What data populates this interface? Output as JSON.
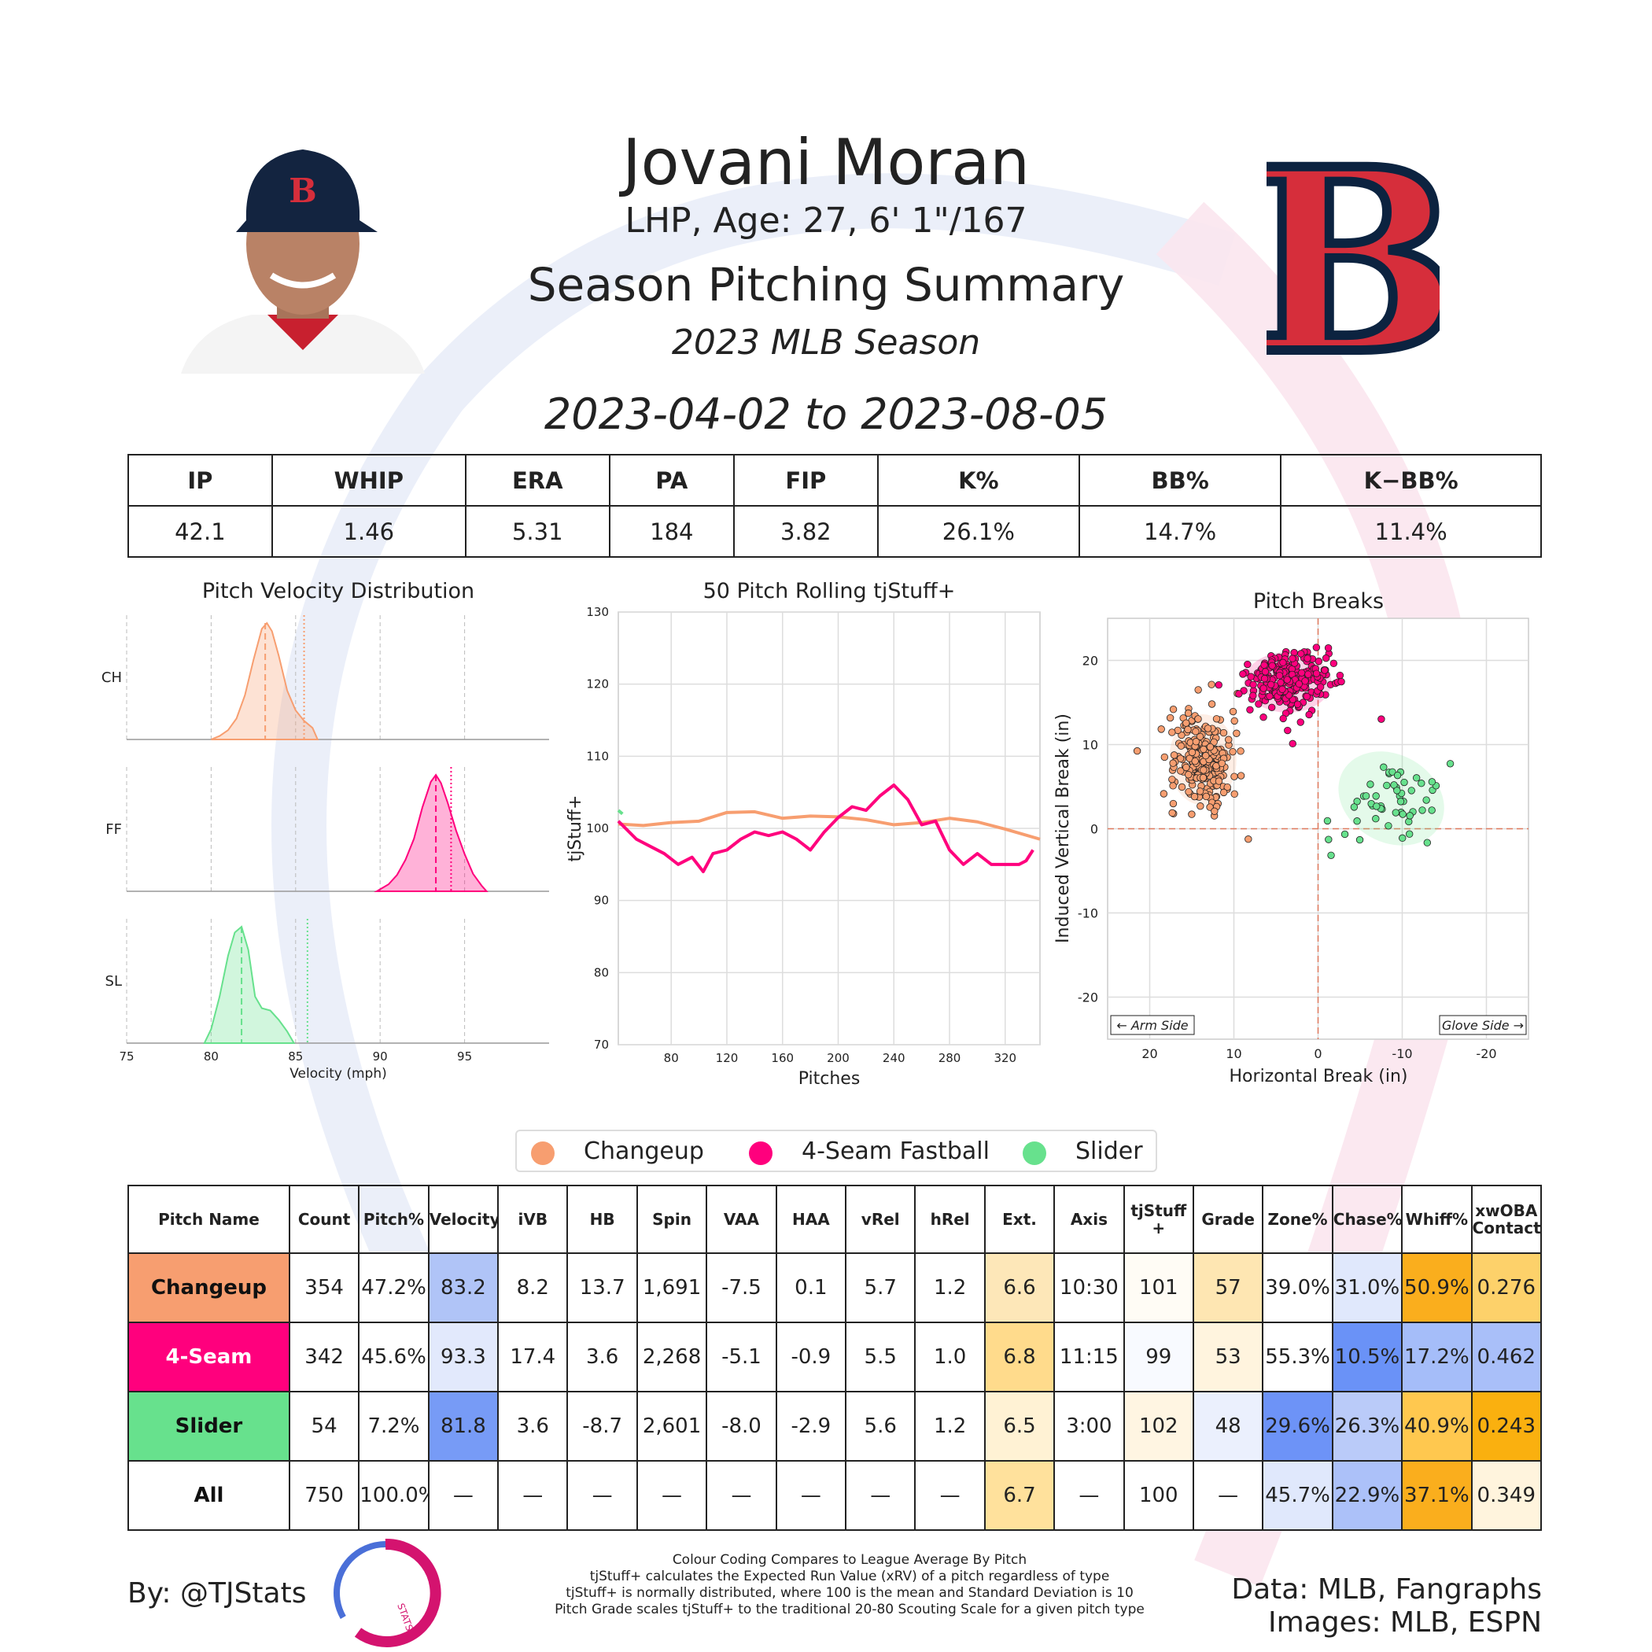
{
  "colors": {
    "changeup": "#F79E70",
    "fastball": "#FF007D",
    "slider": "#67E18D",
    "redsox_red": "#D62E3B",
    "redsox_navy": "#0C2340"
  },
  "header": {
    "name": "Jovani Moran",
    "sub": "LHP, Age: 27, 6' 1\"/167",
    "title": "Season Pitching Summary",
    "season": "2023 MLB Season",
    "dates": "2023-04-02 to 2023-08-05",
    "team_logo_icon": "red-sox-b-logo",
    "player_photo_icon": "player-headshot"
  },
  "stats": {
    "headers": [
      "IP",
      "WHIP",
      "ERA",
      "PA",
      "FIP",
      "K%",
      "BB%",
      "K−BB%"
    ],
    "values": [
      "42.1",
      "1.46",
      "5.31",
      "184",
      "3.82",
      "26.1%",
      "14.7%",
      "11.4%"
    ]
  },
  "legend": [
    "Changeup",
    "4-Seam Fastball",
    "Slider"
  ],
  "chart_data": [
    {
      "type": "area",
      "title": "Pitch Velocity Distribution",
      "xlabel": "Velocity (mph)",
      "xticks": [
        75,
        80,
        85,
        90,
        95
      ],
      "xlim": [
        75,
        100
      ],
      "series": [
        {
          "name": "CH",
          "mean": 83.2,
          "league_mean": 85.5,
          "x": [
            80,
            80.5,
            81,
            81.5,
            82,
            82.5,
            83,
            83.3,
            83.6,
            84,
            84.5,
            85,
            85.5,
            86,
            86.3
          ],
          "density": [
            0,
            0.03,
            0.08,
            0.18,
            0.38,
            0.68,
            0.95,
            1.0,
            0.93,
            0.72,
            0.42,
            0.25,
            0.16,
            0.1,
            0
          ]
        },
        {
          "name": "FF",
          "mean": 93.3,
          "league_mean": 94.2,
          "x": [
            89.8,
            90.5,
            91,
            91.5,
            92,
            92.5,
            93,
            93.3,
            93.6,
            94,
            94.5,
            95,
            95.5,
            96,
            96.3
          ],
          "density": [
            0,
            0.06,
            0.14,
            0.27,
            0.45,
            0.72,
            0.94,
            1.0,
            0.93,
            0.76,
            0.52,
            0.32,
            0.15,
            0.05,
            0
          ]
        },
        {
          "name": "SL",
          "mean": 81.8,
          "league_mean": 85.7,
          "x": [
            79.6,
            80,
            80.5,
            81,
            81.4,
            81.8,
            82.2,
            82.6,
            83,
            83.5,
            84,
            84.5,
            84.9
          ],
          "density": [
            0,
            0.12,
            0.4,
            0.75,
            0.95,
            1.0,
            0.8,
            0.4,
            0.3,
            0.28,
            0.2,
            0.1,
            0
          ]
        }
      ]
    },
    {
      "type": "line",
      "title": "50 Pitch Rolling tjStuff+",
      "xlabel": "Pitches",
      "ylabel": "tjStuff+",
      "xticks": [
        80,
        120,
        160,
        200,
        240,
        280,
        320
      ],
      "yticks": [
        70,
        80,
        90,
        100,
        110,
        120,
        130
      ],
      "xlim": [
        42,
        345
      ],
      "ylim": [
        70,
        130
      ],
      "series": [
        {
          "name": "Changeup",
          "x": [
            42,
            60,
            80,
            100,
            120,
            140,
            160,
            180,
            200,
            220,
            240,
            260,
            280,
            300,
            320,
            345
          ],
          "values": [
            100.6,
            100.4,
            100.8,
            101.0,
            102.2,
            102.3,
            101.4,
            101.7,
            101.6,
            101.2,
            100.5,
            100.8,
            101.4,
            100.9,
            99.9,
            98.5
          ]
        },
        {
          "name": "4-Seam Fastball",
          "x": [
            42,
            55,
            65,
            75,
            85,
            95,
            103,
            110,
            120,
            130,
            140,
            150,
            160,
            170,
            180,
            190,
            200,
            210,
            220,
            230,
            240,
            250,
            260,
            270,
            280,
            290,
            300,
            310,
            320,
            330,
            335,
            340
          ],
          "values": [
            101.0,
            98.5,
            97.5,
            96.5,
            95.0,
            96.0,
            94.0,
            96.5,
            97.0,
            98.5,
            99.5,
            99.0,
            99.5,
            98.5,
            97.0,
            99.5,
            101.5,
            103.0,
            102.5,
            104.5,
            106.0,
            104.0,
            100.5,
            101.0,
            97.0,
            95.0,
            96.5,
            95.0,
            95.0,
            95.0,
            95.5,
            97.0
          ]
        },
        {
          "name": "Slider",
          "x": [
            42,
            45
          ],
          "values": [
            102.5,
            102.0
          ]
        }
      ]
    },
    {
      "type": "scatter",
      "title": "Pitch Breaks",
      "xlabel": "Horizontal Break (in)",
      "ylabel": "Induced Vertical Break (in)",
      "xticks": [
        20,
        10,
        0,
        -10,
        -20
      ],
      "yticks": [
        -20,
        -10,
        0,
        10,
        20
      ],
      "xlim": [
        25,
        -25
      ],
      "ylim": [
        -25,
        25
      ],
      "annotations": [
        "← Arm Side",
        "Glove Side →"
      ],
      "series": [
        {
          "name": "Changeup",
          "n": 354,
          "hb_mean": 13.7,
          "ivb_mean": 8.2,
          "hb_sd": 2.0,
          "ivb_sd": 2.7
        },
        {
          "name": "4-Seam Fastball",
          "n": 342,
          "hb_mean": 3.6,
          "ivb_mean": 17.4,
          "hb_sd": 2.6,
          "ivb_sd": 1.8
        },
        {
          "name": "Slider",
          "n": 54,
          "hb_mean": -8.7,
          "ivb_mean": 3.6,
          "hb_sd": 3.3,
          "ivb_sd": 2.6
        }
      ]
    }
  ],
  "pitch_table": {
    "headers": [
      "Pitch Name",
      "Count",
      "Pitch%",
      "Velocity",
      "iVB",
      "HB",
      "Spin",
      "VAA",
      "HAA",
      "vRel",
      "hRel",
      "Ext.",
      "Axis",
      "tjStuff +",
      "Grade",
      "Zone%",
      "Chase%",
      "Whiff%",
      "xwOBA Contact"
    ],
    "rows": [
      {
        "cells": [
          "Changeup",
          "354",
          "47.2%",
          "83.2",
          "8.2",
          "13.7",
          "1,691",
          "-7.5",
          "0.1",
          "5.7",
          "1.2",
          "6.6",
          "10:30",
          "101",
          "57",
          "39.0%",
          "31.0%",
          "50.9%",
          "0.276"
        ],
        "bg": [
          "#F79E70",
          "#fff",
          "#fff",
          "#B0C4F7",
          "#fff",
          "#fff",
          "#fff",
          "#fff",
          "#fff",
          "#fff",
          "#fff",
          "#FDE7B8",
          "#fff",
          "#FFFCF5",
          "#FEE6B2",
          "#fff",
          "#E0E8FC",
          "#FAAE1D",
          "#FDD16A"
        ],
        "fg": [
          "#111"
        ]
      },
      {
        "cells": [
          "4-Seam",
          "342",
          "45.6%",
          "93.3",
          "17.4",
          "3.6",
          "2,268",
          "-5.1",
          "-0.9",
          "5.5",
          "1.0",
          "6.8",
          "11:15",
          "99",
          "53",
          "55.3%",
          "10.5%",
          "17.2%",
          "0.462"
        ],
        "bg": [
          "#FF007D",
          "#fff",
          "#fff",
          "#E2E9FC",
          "#fff",
          "#fff",
          "#fff",
          "#fff",
          "#fff",
          "#fff",
          "#fff",
          "#FFDB8C",
          "#fff",
          "#F8FAFF",
          "#FFF4DE",
          "#fff",
          "#6A92F7",
          "#A5BDF9",
          "#A9BFF9"
        ],
        "fg": [
          "#fff"
        ]
      },
      {
        "cells": [
          "Slider",
          "54",
          "7.2%",
          "81.8",
          "3.6",
          "-8.7",
          "2,601",
          "-8.0",
          "-2.9",
          "5.6",
          "1.2",
          "6.5",
          "3:00",
          "102",
          "48",
          "29.6%",
          "26.3%",
          "40.9%",
          "0.243"
        ],
        "bg": [
          "#67E18D",
          "#fff",
          "#fff",
          "#779BF6",
          "#fff",
          "#fff",
          "#fff",
          "#fff",
          "#fff",
          "#fff",
          "#fff",
          "#FFF2D4",
          "#fff",
          "#FFF5E2",
          "#EBF0FD",
          "#6D93F7",
          "#BACBF9",
          "#FFC84F",
          "#FAB00F"
        ],
        "fg": [
          "#111"
        ]
      },
      {
        "cells": [
          "All",
          "750",
          "100.0%",
          "—",
          "—",
          "—",
          "—",
          "—",
          "—",
          "—",
          "—",
          "6.7",
          "—",
          "100",
          "—",
          "45.7%",
          "22.9%",
          "37.1%",
          "0.349"
        ],
        "bg": [
          "#fff",
          "#fff",
          "#fff",
          "#fff",
          "#fff",
          "#fff",
          "#fff",
          "#fff",
          "#fff",
          "#fff",
          "#fff",
          "#FFE19C",
          "#fff",
          "#fff",
          "#fff",
          "#E0E8FC",
          "#ACC1F9",
          "#FAAE1D",
          "#FFF4DD"
        ],
        "fg": [
          "#111"
        ]
      }
    ]
  },
  "footer": {
    "by": "By: @TJStats",
    "notes": [
      "Colour Coding Compares to League Average By Pitch",
      "tjStuff+ calculates the Expected Run Value (xRV) of a pitch regardless of type",
      "tjStuff+ is normally distributed, where 100 is the mean and Standard Deviation is 10",
      "Pitch Grade scales tjStuff+ to the traditional 20-80 Scouting Scale for a given pitch type"
    ],
    "data": "Data: MLB, Fangraphs",
    "images": "Images: MLB, ESPN",
    "logo_icon": "tjstats-logo",
    "logo_text": "STATS"
  }
}
